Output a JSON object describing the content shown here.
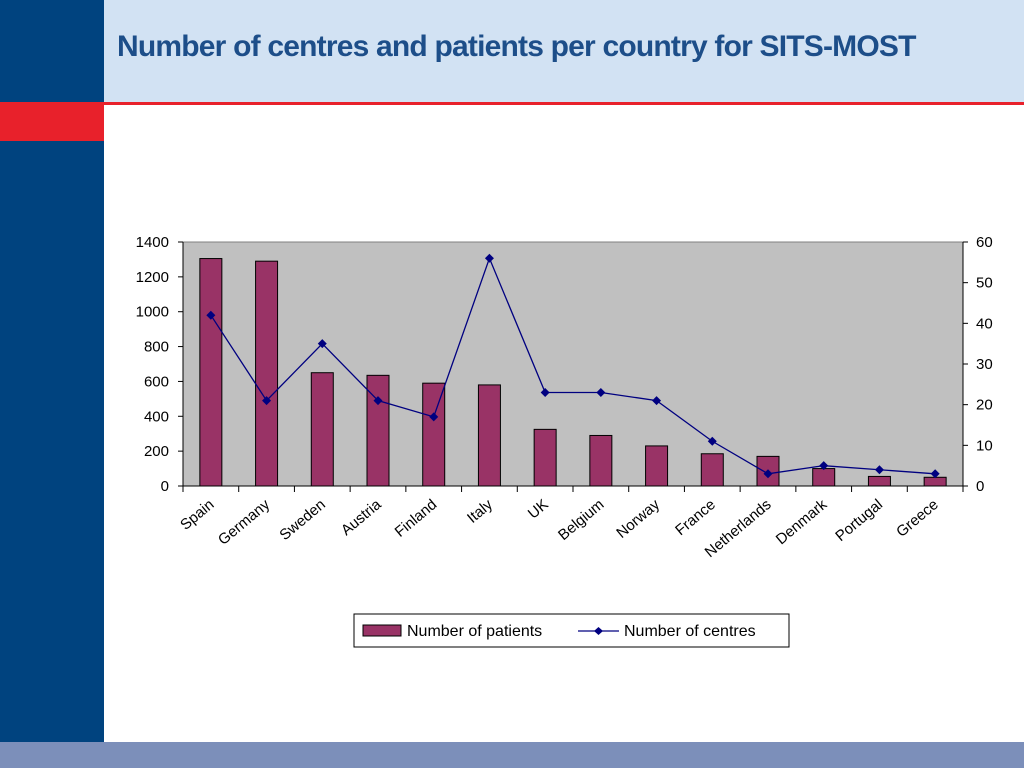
{
  "slide": {
    "title": "Number of centres and patients per country for  SITS-MOST"
  },
  "colors": {
    "sidebar": "#00437f",
    "accent_red": "#e8212b",
    "header_bg": "#d2e2f3",
    "footer": "#7c8fba",
    "title_text": "#1d4e89",
    "plot_bg": "#c0c0c0",
    "bar_fill": "#993366",
    "line": "#000080"
  },
  "chart_data": {
    "type": "bar",
    "categories": [
      "Spain",
      "Germany",
      "Sweden",
      "Austria",
      "Finland",
      "Italy",
      "UK",
      "Belgium",
      "Norway",
      "France",
      "Netherlands",
      "Denmark",
      "Portugal",
      "Greece"
    ],
    "series": [
      {
        "name": "Number of patients",
        "type": "bar",
        "axis": "left",
        "values": [
          1305,
          1290,
          650,
          635,
          590,
          580,
          325,
          290,
          230,
          185,
          170,
          100,
          55,
          50
        ]
      },
      {
        "name": "Number of centres",
        "type": "line",
        "axis": "right",
        "values": [
          42,
          21,
          35,
          21,
          17,
          56,
          23,
          23,
          21,
          11,
          3,
          5,
          4,
          3
        ]
      }
    ],
    "ylim_left": [
      0,
      1400
    ],
    "yticks_left": [
      0,
      200,
      400,
      600,
      800,
      1000,
      1200,
      1400
    ],
    "ylim_right": [
      0,
      60
    ],
    "yticks_right": [
      0,
      10,
      20,
      30,
      40,
      50,
      60
    ],
    "grid": false,
    "legend_position": "bottom",
    "title": "",
    "xlabel": "",
    "ylabel": ""
  }
}
